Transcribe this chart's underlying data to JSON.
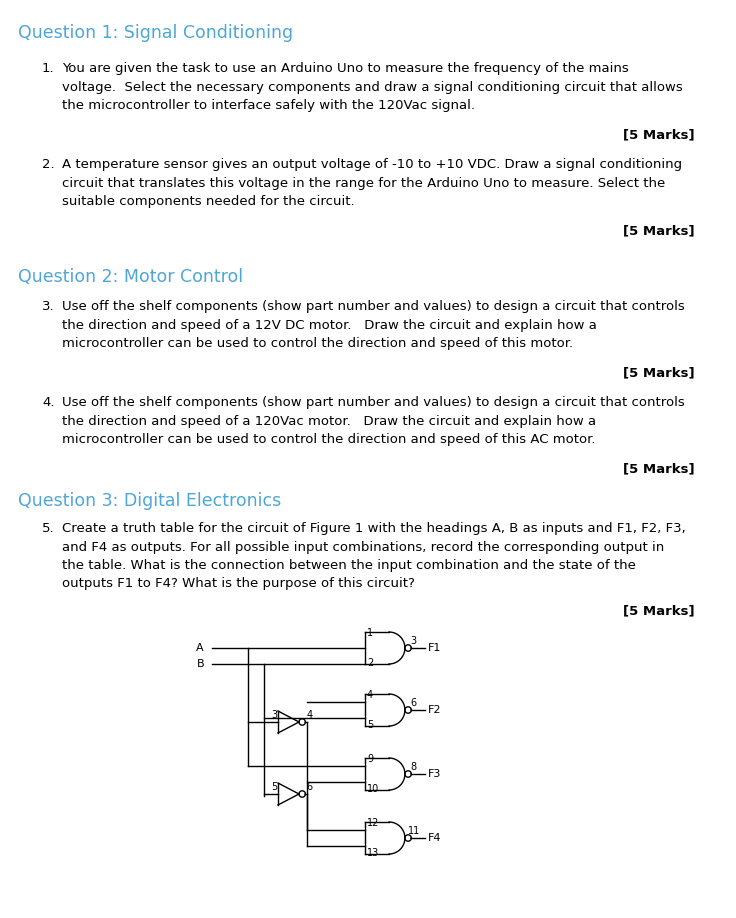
{
  "title_color": "#4da6d9",
  "body_color": "#000000",
  "bg_color": "#ffffff",
  "heading1": "Question 1: Signal Conditioning",
  "heading2": "Question 2: Motor Control",
  "heading3": "Question 3: Digital Electronics",
  "heading_fontsize": 12.5,
  "body_fontsize": 9.5,
  "marks_fontsize": 9.5,
  "q1_text": "You are given the task to use an Arduino Uno to measure the frequency of the mains\nvoltage.  Select the necessary components and draw a signal conditioning circuit that allows\nthe microcontroller to interface safely with the 120Vac signal.",
  "q2_text": "A temperature sensor gives an output voltage of -10 to +10 VDC. Draw a signal conditioning\ncircuit that translates this voltage in the range for the Arduino Uno to measure. Select the\nsuitable components needed for the circuit.",
  "q3_text": "Use off the shelf components (show part number and values) to design a circuit that controls\nthe direction and speed of a 12V DC motor.   Draw the circuit and explain how a\nmicrocontroller can be used to control the direction and speed of this motor.",
  "q4_text": "Use off the shelf components (show part number and values) to design a circuit that controls\nthe direction and speed of a 120Vac motor.   Draw the circuit and explain how a\nmicrocontroller can be used to control the direction and speed of this AC motor.",
  "q5_text": "Create a truth table for the circuit of Figure 1 with the headings A, B as inputs and F1, F2, F3,\nand F4 as outputs. For all possible input combinations, record the corresponding output in\nthe table. What is the connection between the input combination and the state of the\noutputs F1 to F4? What is the purpose of this circuit?"
}
